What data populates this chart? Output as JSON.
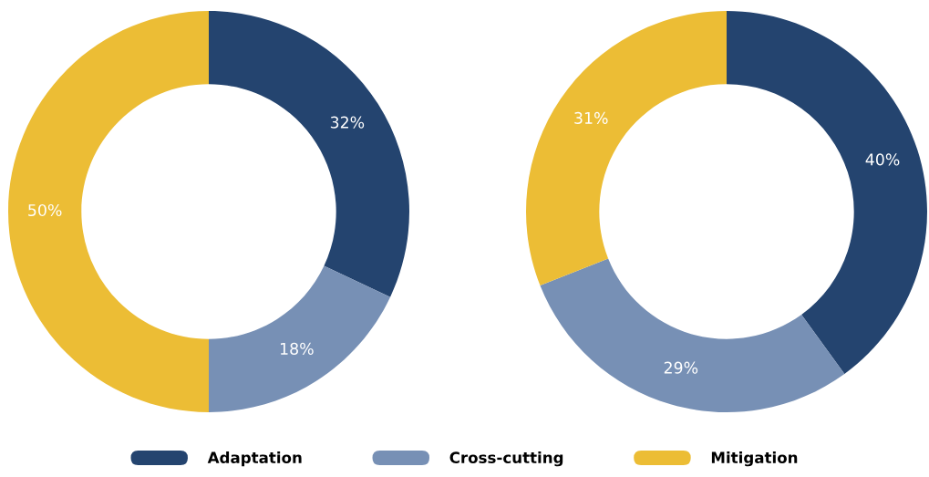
{
  "chart_data": {
    "type": "donut",
    "categories": [
      "Adaptation",
      "Cross-cutting",
      "Mitigation"
    ],
    "colors": [
      "#24446f",
      "#7790b5",
      "#ecbd35"
    ],
    "legend": "bottom",
    "series": [
      {
        "values": [
          32,
          18,
          50
        ],
        "value_labels": [
          "32%",
          "18%",
          "50%"
        ]
      },
      {
        "values": [
          40,
          29,
          31
        ],
        "value_labels": [
          "40%",
          "29%",
          "31%"
        ]
      }
    ]
  }
}
